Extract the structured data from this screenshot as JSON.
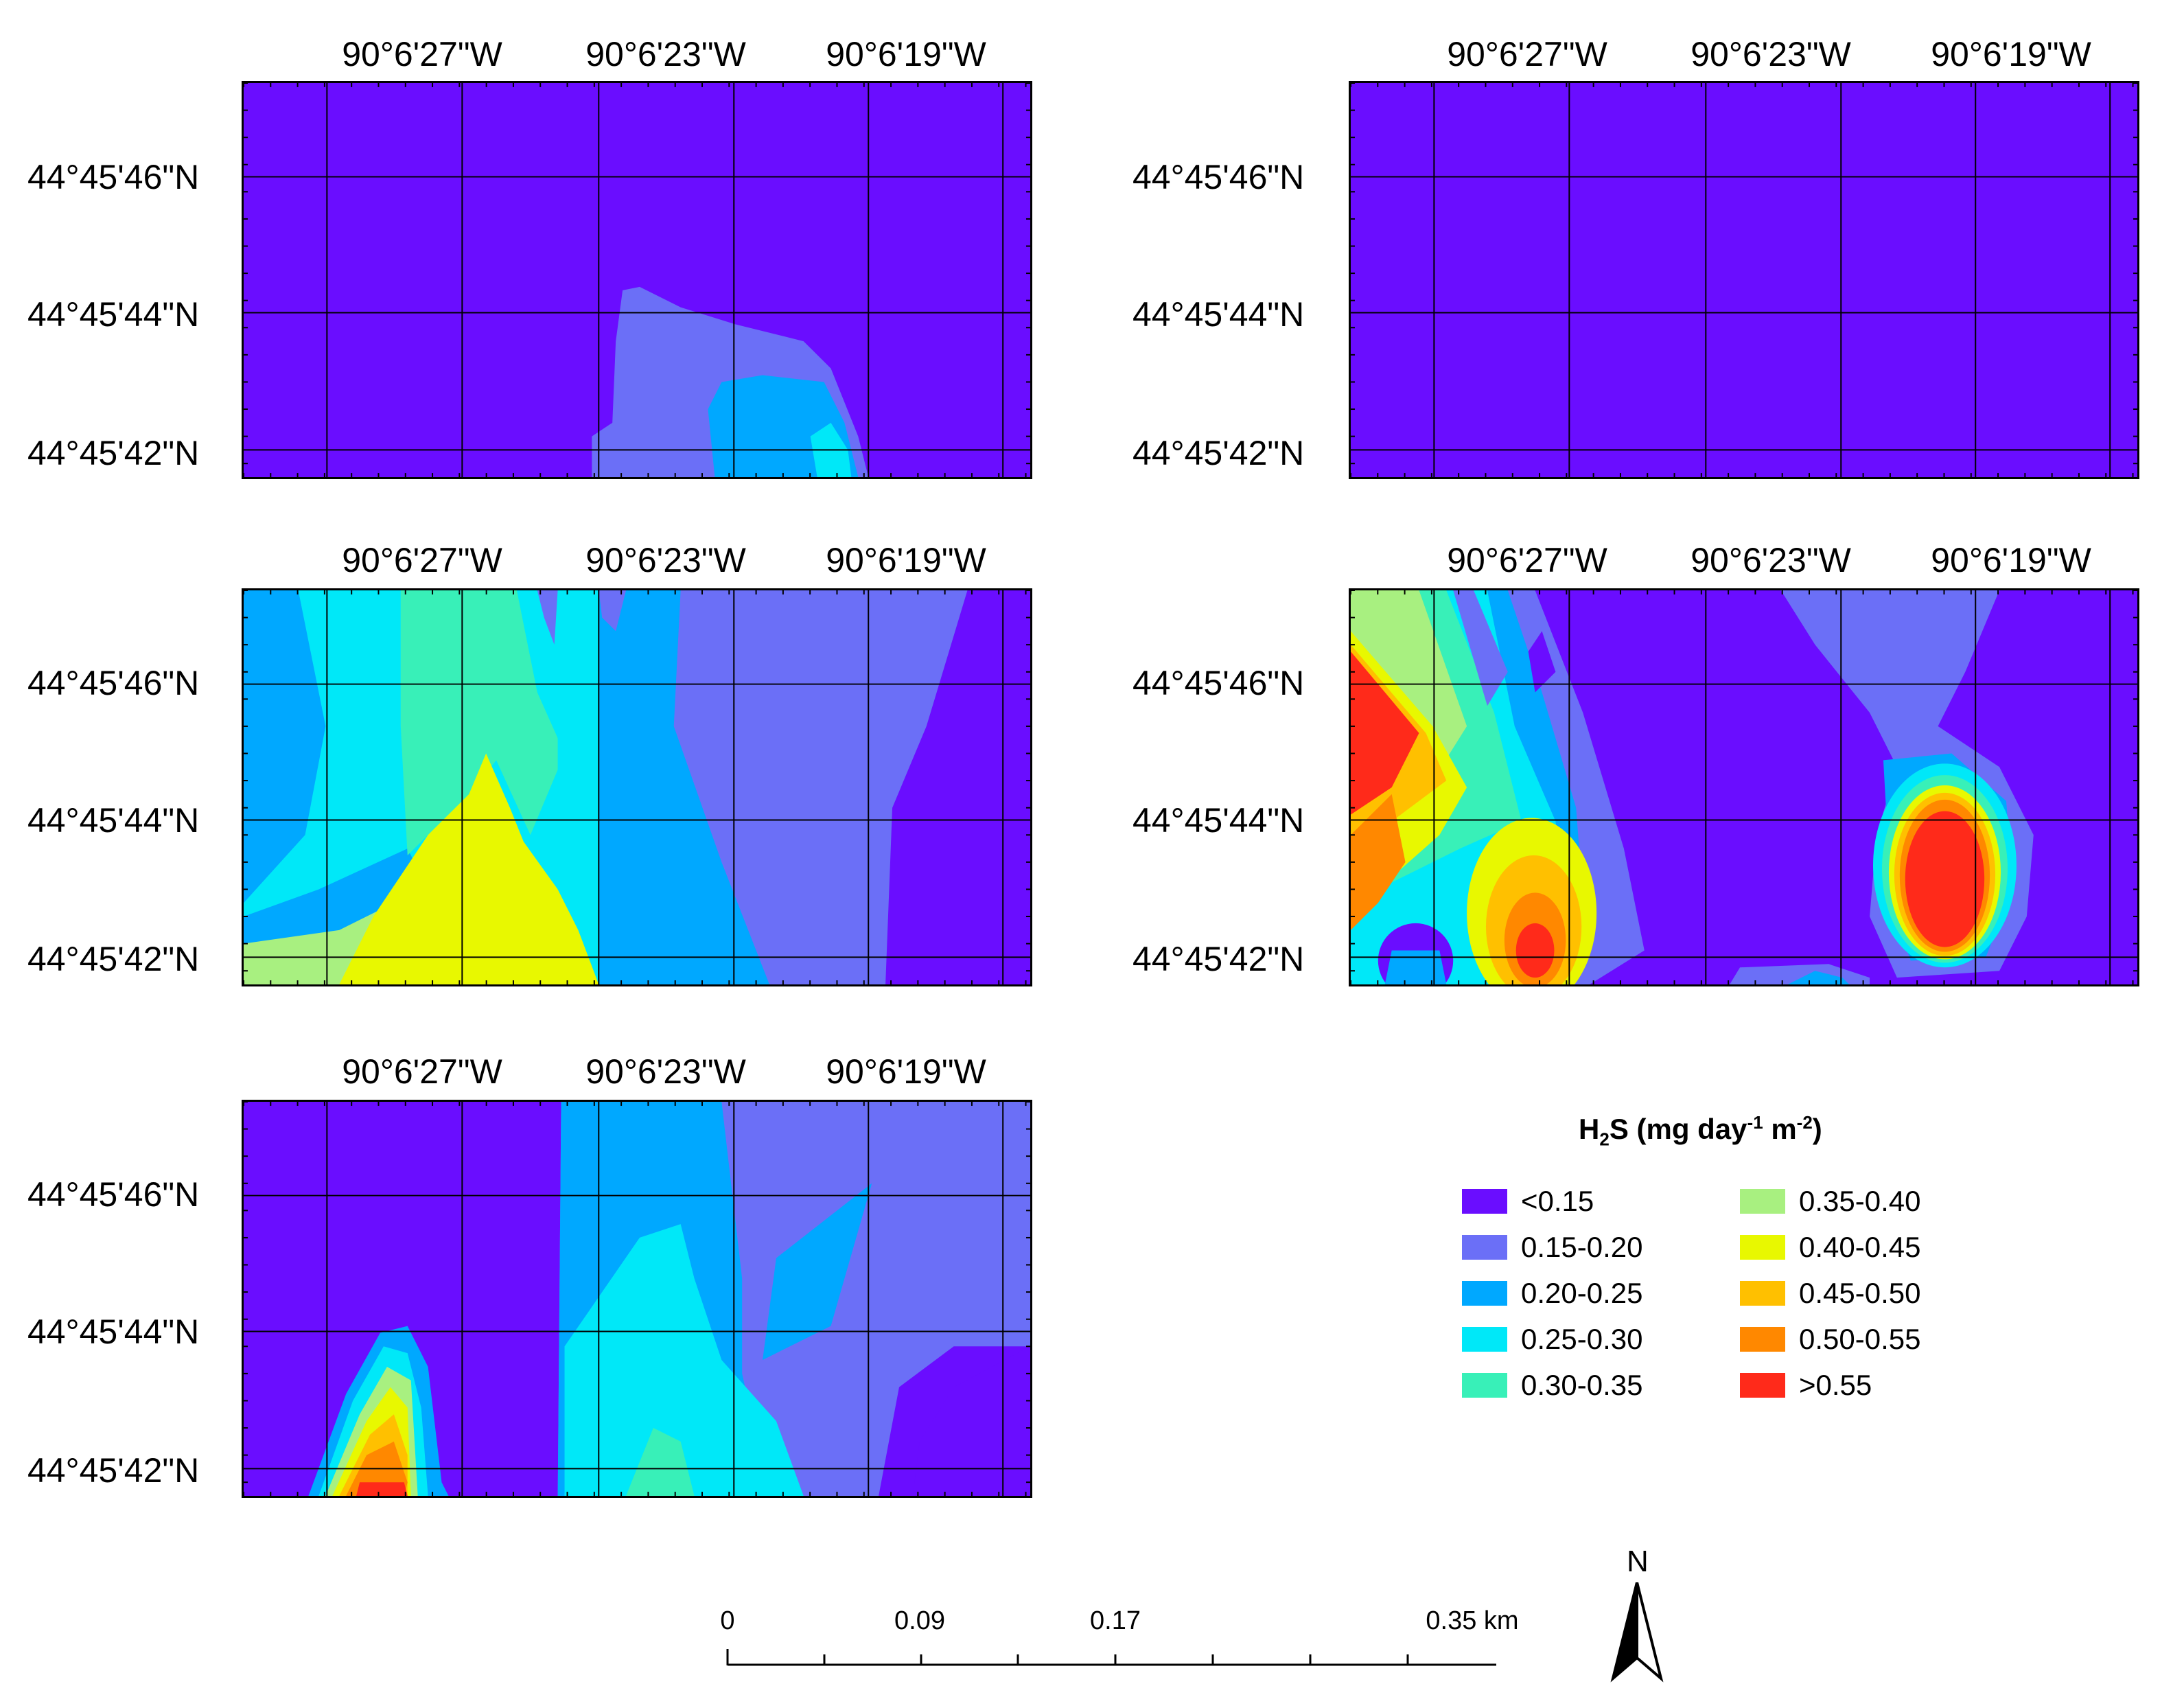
{
  "lon_labels": [
    "90°6'27\"W",
    "90°6'23\"W",
    "90°6'19\"W"
  ],
  "lat_labels": [
    "44°45'46\"N",
    "44°45'44\"N",
    "44°45'42\"N"
  ],
  "colors": {
    "lt015": "#6a0dff",
    "c015_020": "#6b6ff7",
    "c020_025": "#00a8ff",
    "c025_030": "#00e8f8",
    "c030_035": "#38f0b8",
    "c035_040": "#a8f080",
    "c040_045": "#e8f800",
    "c045_050": "#ffc000",
    "c050_055": "#ff8800",
    "gt055": "#ff2a1a"
  },
  "legend": {
    "title_main": "H",
    "title_sub": "2",
    "title_mid": "S (mg day",
    "title_sup1": "-1",
    "title_mid2": " m",
    "title_sup2": "-2",
    "title_end": ")",
    "items": [
      {
        "label": "<0.15",
        "color": "#6a0dff"
      },
      {
        "label": "0.15-0.20",
        "color": "#6b6ff7"
      },
      {
        "label": "0.20-0.25",
        "color": "#00a8ff"
      },
      {
        "label": "0.25-0.30",
        "color": "#00e8f8"
      },
      {
        "label": "0.30-0.35",
        "color": "#38f0b8"
      },
      {
        "label": "0.35-0.40",
        "color": "#a8f080"
      },
      {
        "label": "0.40-0.45",
        "color": "#e8f800"
      },
      {
        "label": "0.45-0.50",
        "color": "#ffc000"
      },
      {
        "label": "0.50-0.55",
        "color": "#ff8800"
      },
      {
        "label": ">0.55",
        "color": "#ff2a1a"
      }
    ]
  },
  "scale": {
    "labels": [
      "0",
      "0.09",
      "0.17",
      "0.35 km"
    ]
  },
  "north_arrow": {
    "label": "N"
  }
}
